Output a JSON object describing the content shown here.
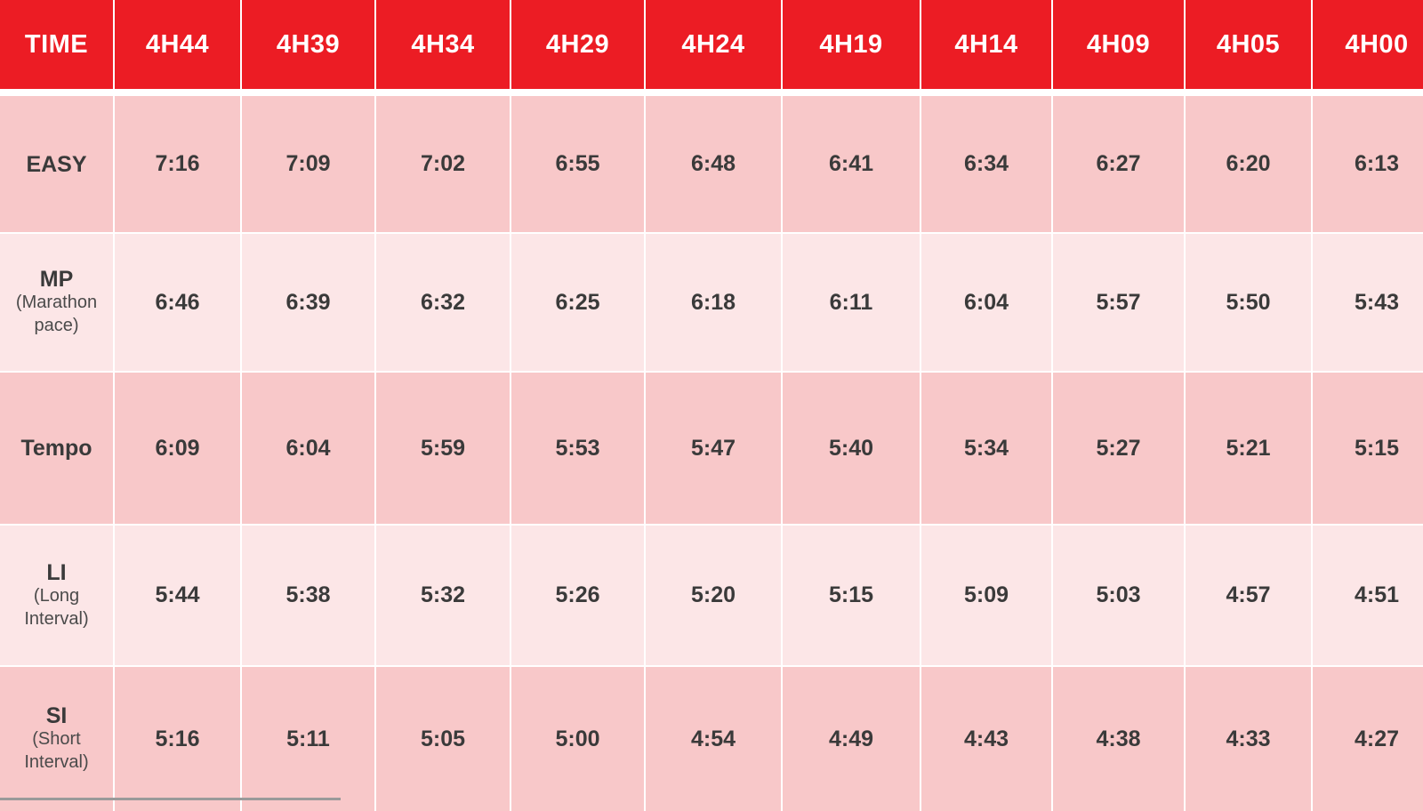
{
  "table": {
    "header": [
      "TIME",
      "4H44",
      "4H39",
      "4H34",
      "4H29",
      "4H24",
      "4H19",
      "4H14",
      "4H09",
      "4H05",
      "4H00"
    ],
    "rows": [
      {
        "label": "EASY",
        "sublabel": "",
        "values": [
          "7:16",
          "7:09",
          "7:02",
          "6:55",
          "6:48",
          "6:41",
          "6:34",
          "6:27",
          "6:20",
          "6:13"
        ]
      },
      {
        "label": "MP",
        "sublabel": "(Marathon pace)",
        "values": [
          "6:46",
          "6:39",
          "6:32",
          "6:25",
          "6:18",
          "6:11",
          "6:04",
          "5:57",
          "5:50",
          "5:43"
        ]
      },
      {
        "label": "Tempo",
        "sublabel": "",
        "values": [
          "6:09",
          "6:04",
          "5:59",
          "5:53",
          "5:47",
          "5:40",
          "5:34",
          "5:27",
          "5:21",
          "5:15"
        ]
      },
      {
        "label": "LI",
        "sublabel": "(Long Interval)",
        "values": [
          "5:44",
          "5:38",
          "5:32",
          "5:26",
          "5:20",
          "5:15",
          "5:09",
          "5:03",
          "4:57",
          "4:51"
        ]
      },
      {
        "label": "SI",
        "sublabel": "(Short Interval)",
        "values": [
          "5:16",
          "5:11",
          "5:05",
          "5:00",
          "4:54",
          "4:49",
          "4:43",
          "4:38",
          "4:33",
          "4:27"
        ]
      }
    ]
  },
  "colors": {
    "header_bg": "#ec1c24",
    "header_text": "#ffffff",
    "row_dark": "#f8c8c9",
    "row_light": "#fce6e7",
    "body_text": "#3a3a3a"
  }
}
